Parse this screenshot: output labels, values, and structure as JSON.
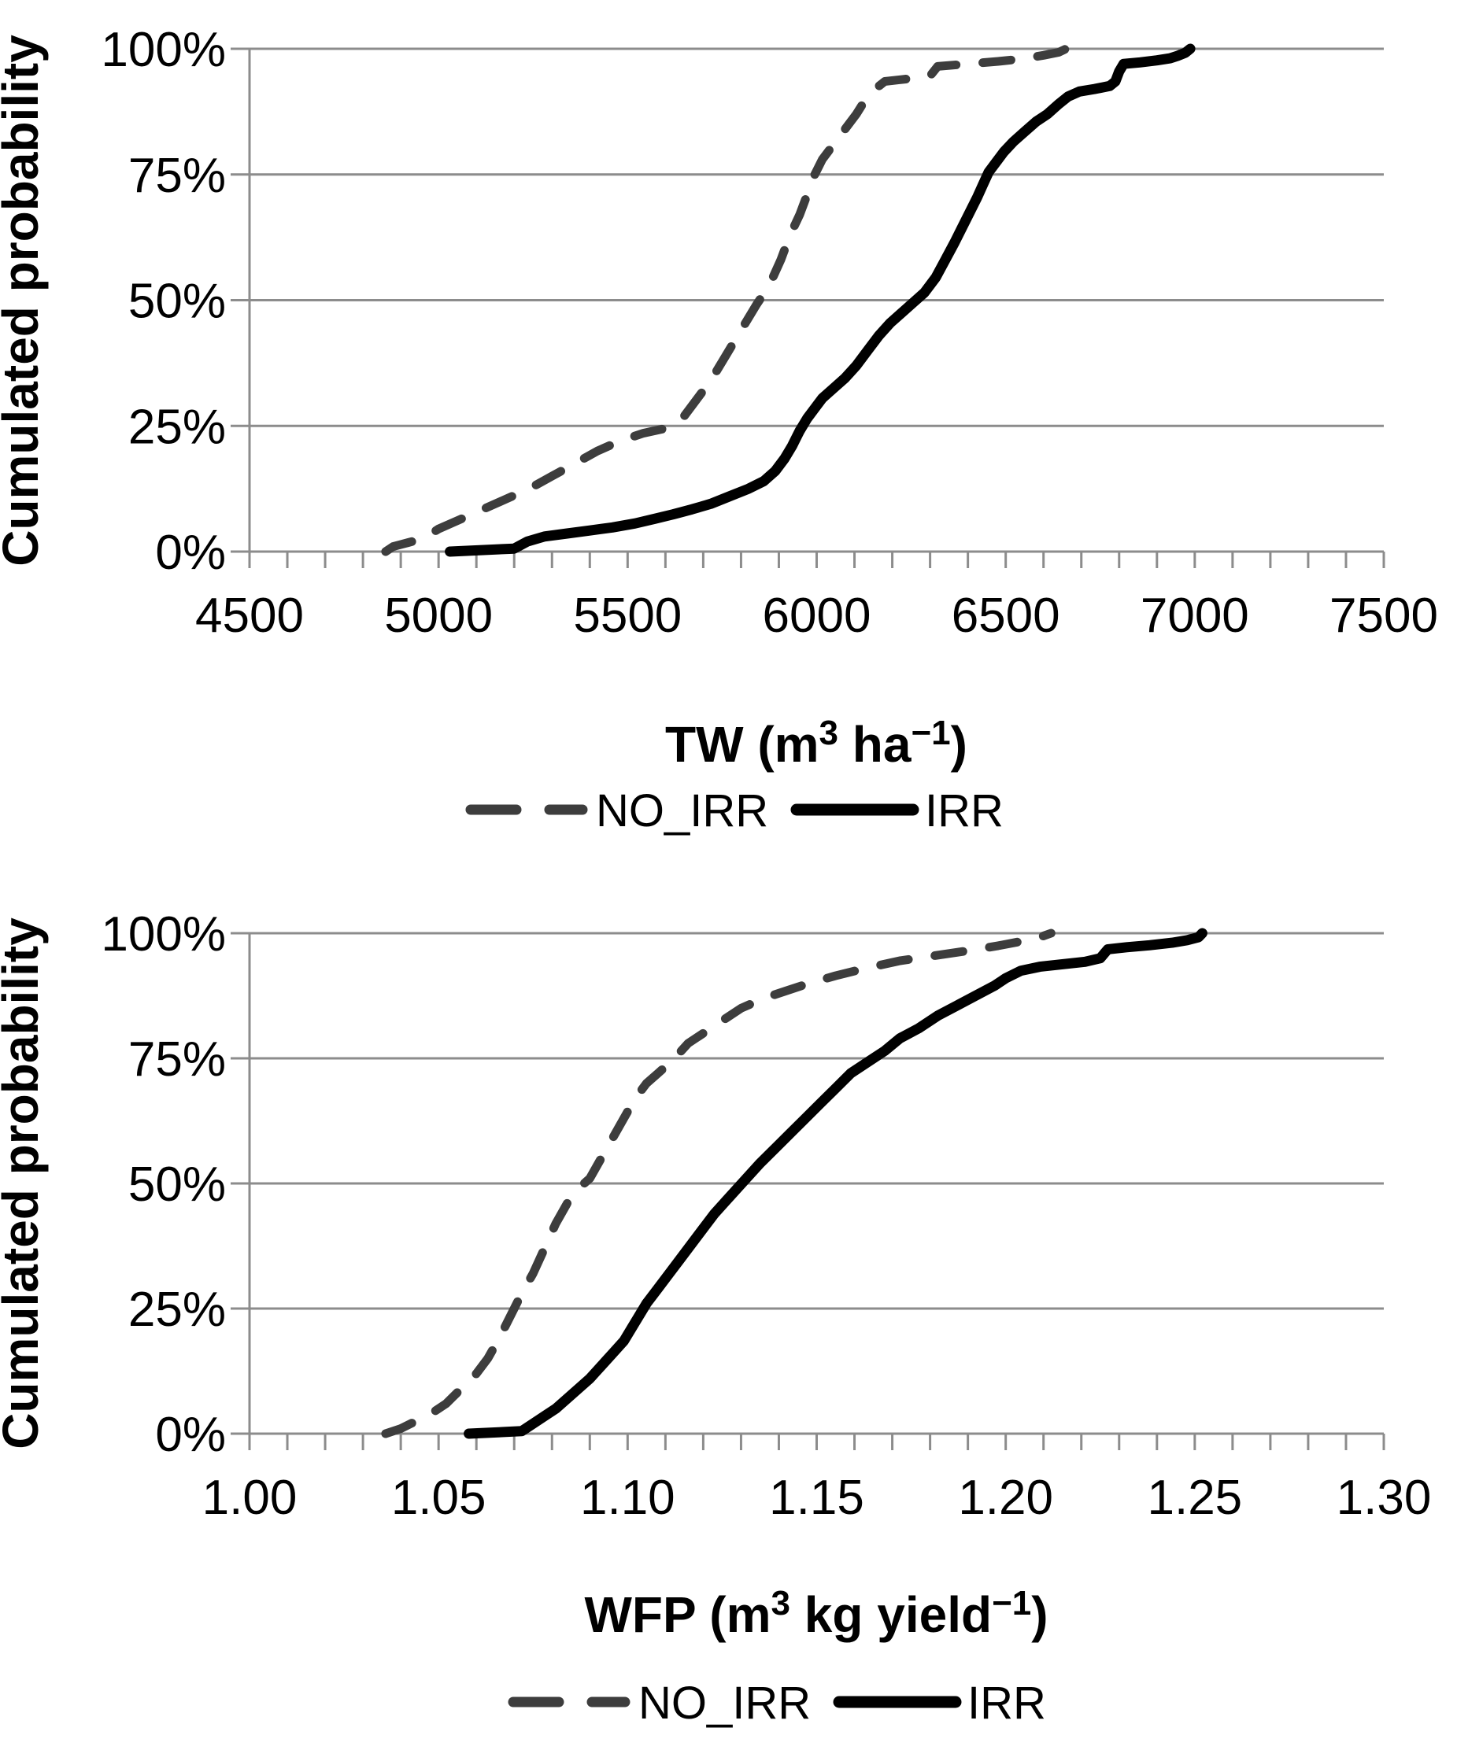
{
  "figure": {
    "background": "#ffffff",
    "y_axis_title": "Cumulated probability"
  },
  "colors": {
    "no_irr": "#3d3d3d",
    "irr": "#000000",
    "grid": "#8c8c8c",
    "axis": "#8c8c8c",
    "text": "#000000"
  },
  "legend": {
    "no_irr_label": "NO_IRR",
    "irr_label": "IRR"
  },
  "chart_data": [
    {
      "type": "line",
      "subtype": "empirical-cdf",
      "title": "",
      "xlabel": "TW (m³ ha⁻¹)",
      "xlabel_parts": [
        {
          "t": "TW (m"
        },
        {
          "t": "3",
          "sup": true
        },
        {
          "t": " ha"
        },
        {
          "t": "−1",
          "sup": true
        },
        {
          "t": ")"
        }
      ],
      "ylabel": "Cumulated probability",
      "grid": "horizontal",
      "legend_position": "bottom",
      "x_axis": {
        "min": 4500,
        "max": 7500,
        "minor_step": 100,
        "tick_values": [
          4500,
          5000,
          5500,
          6000,
          6500,
          7000,
          7500
        ],
        "tick_labels": [
          "4500",
          "5000",
          "5500",
          "6000",
          "6500",
          "7000",
          "7500"
        ]
      },
      "y_axis": {
        "min": 0,
        "max": 100,
        "tick_values": [
          100,
          75,
          50,
          25,
          0
        ],
        "tick_labels": [
          "100%",
          "75%",
          "50%",
          "25%",
          "0%"
        ]
      },
      "series": [
        {
          "name": "NO_IRR",
          "style": "dashed",
          "color": "#3d3d3d",
          "points": [
            [
              4860,
              0
            ],
            [
              4880,
              1
            ],
            [
              4920,
              1.8
            ],
            [
              4960,
              2.6
            ],
            [
              5000,
              4.5
            ],
            [
              5060,
              6.5
            ],
            [
              5120,
              8.5
            ],
            [
              5180,
              10.5
            ],
            [
              5240,
              12.5
            ],
            [
              5300,
              15
            ],
            [
              5360,
              17.5
            ],
            [
              5420,
              20
            ],
            [
              5480,
              22
            ],
            [
              5540,
              23.5
            ],
            [
              5600,
              24.5
            ],
            [
              5645,
              26.5
            ],
            [
              5680,
              30
            ],
            [
              5720,
              34
            ],
            [
              5760,
              39
            ],
            [
              5800,
              44
            ],
            [
              5840,
              49
            ],
            [
              5875,
              53
            ],
            [
              5905,
              58
            ],
            [
              5930,
              63
            ],
            [
              5955,
              67
            ],
            [
              5975,
              71
            ],
            [
              5995,
              75
            ],
            [
              6015,
              78
            ],
            [
              6045,
              81
            ],
            [
              6075,
              84
            ],
            [
              6105,
              87
            ],
            [
              6130,
              90
            ],
            [
              6155,
              92
            ],
            [
              6180,
              93.5
            ],
            [
              6240,
              94
            ],
            [
              6300,
              94.6
            ],
            [
              6320,
              96.5
            ],
            [
              6400,
              97
            ],
            [
              6480,
              97.5
            ],
            [
              6545,
              98
            ],
            [
              6600,
              98.7
            ],
            [
              6640,
              99.3
            ],
            [
              6660,
              100
            ]
          ]
        },
        {
          "name": "IRR",
          "style": "solid",
          "color": "#000000",
          "points": [
            [
              5030,
              0
            ],
            [
              5200,
              0.6
            ],
            [
              5235,
              2
            ],
            [
              5280,
              3
            ],
            [
              5340,
              3.6
            ],
            [
              5400,
              4.2
            ],
            [
              5460,
              4.8
            ],
            [
              5520,
              5.6
            ],
            [
              5570,
              6.5
            ],
            [
              5620,
              7.4
            ],
            [
              5670,
              8.4
            ],
            [
              5720,
              9.5
            ],
            [
              5770,
              11
            ],
            [
              5820,
              12.5
            ],
            [
              5860,
              14
            ],
            [
              5890,
              16
            ],
            [
              5915,
              18.5
            ],
            [
              5935,
              21
            ],
            [
              5955,
              24
            ],
            [
              5975,
              26.5
            ],
            [
              5995,
              28.5
            ],
            [
              6015,
              30.5
            ],
            [
              6045,
              32.5
            ],
            [
              6075,
              34.5
            ],
            [
              6105,
              37
            ],
            [
              6135,
              40
            ],
            [
              6165,
              43
            ],
            [
              6195,
              45.5
            ],
            [
              6225,
              47.5
            ],
            [
              6255,
              49.5
            ],
            [
              6285,
              51.5
            ],
            [
              6315,
              54.5
            ],
            [
              6340,
              58
            ],
            [
              6365,
              61.5
            ],
            [
              6385,
              64.5
            ],
            [
              6405,
              67.5
            ],
            [
              6425,
              70.5
            ],
            [
              6440,
              73
            ],
            [
              6455,
              75.5
            ],
            [
              6475,
              77.5
            ],
            [
              6495,
              79.5
            ],
            [
              6520,
              81.5
            ],
            [
              6550,
              83.5
            ],
            [
              6580,
              85.5
            ],
            [
              6610,
              87
            ],
            [
              6640,
              89
            ],
            [
              6665,
              90.5
            ],
            [
              6695,
              91.5
            ],
            [
              6735,
              92
            ],
            [
              6775,
              92.6
            ],
            [
              6790,
              93.5
            ],
            [
              6800,
              95.5
            ],
            [
              6812,
              97
            ],
            [
              6855,
              97.3
            ],
            [
              6900,
              97.7
            ],
            [
              6935,
              98.1
            ],
            [
              6955,
              98.6
            ],
            [
              6975,
              99.2
            ],
            [
              6988,
              100
            ]
          ]
        }
      ]
    },
    {
      "type": "line",
      "subtype": "empirical-cdf",
      "title": "",
      "xlabel": "WFP (m³ kg yield⁻¹)",
      "xlabel_parts": [
        {
          "t": "WFP (m"
        },
        {
          "t": "3",
          "sup": true
        },
        {
          "t": " kg yield"
        },
        {
          "t": "−1",
          "sup": true
        },
        {
          "t": ")"
        }
      ],
      "ylabel": "Cumulated probability",
      "grid": "horizontal",
      "legend_position": "bottom",
      "x_axis": {
        "min": 1.0,
        "max": 1.3,
        "minor_step": 0.01,
        "tick_values": [
          1.0,
          1.05,
          1.1,
          1.15,
          1.2,
          1.25,
          1.3
        ],
        "tick_labels": [
          "1.00",
          "1.05",
          "1.10",
          "1.15",
          "1.20",
          "1.25",
          "1.30"
        ]
      },
      "y_axis": {
        "min": 0,
        "max": 100,
        "tick_values": [
          100,
          75,
          50,
          25,
          0
        ],
        "tick_labels": [
          "100%",
          "75%",
          "50%",
          "25%",
          "0%"
        ]
      },
      "series": [
        {
          "name": "NO_IRR",
          "style": "dashed",
          "color": "#3d3d3d",
          "points": [
            [
              1.036,
              0
            ],
            [
              1.04,
              1
            ],
            [
              1.044,
              2.5
            ],
            [
              1.048,
              4
            ],
            [
              1.052,
              6
            ],
            [
              1.056,
              9
            ],
            [
              1.06,
              12
            ],
            [
              1.063,
              15
            ],
            [
              1.066,
              19
            ],
            [
              1.068,
              22
            ],
            [
              1.07,
              25
            ],
            [
              1.072,
              28
            ],
            [
              1.075,
              32
            ],
            [
              1.078,
              37
            ],
            [
              1.081,
              42
            ],
            [
              1.084,
              46
            ],
            [
              1.087,
              49
            ],
            [
              1.09,
              51
            ],
            [
              1.093,
              55
            ],
            [
              1.096,
              59
            ],
            [
              1.099,
              63
            ],
            [
              1.102,
              67
            ],
            [
              1.105,
              70
            ],
            [
              1.108,
              72
            ],
            [
              1.111,
              74
            ],
            [
              1.113,
              75.5
            ],
            [
              1.116,
              78
            ],
            [
              1.12,
              80
            ],
            [
              1.125,
              82.5
            ],
            [
              1.13,
              85
            ],
            [
              1.136,
              87
            ],
            [
              1.142,
              88.5
            ],
            [
              1.148,
              90
            ],
            [
              1.155,
              91.5
            ],
            [
              1.163,
              93
            ],
            [
              1.172,
              94.5
            ],
            [
              1.181,
              95.5
            ],
            [
              1.19,
              96.5
            ],
            [
              1.198,
              97.5
            ],
            [
              1.205,
              98.5
            ],
            [
              1.209,
              99.2
            ],
            [
              1.212,
              100
            ]
          ]
        },
        {
          "name": "IRR",
          "style": "solid",
          "color": "#000000",
          "points": [
            [
              1.058,
              0
            ],
            [
              1.072,
              0.5
            ],
            [
              1.075,
              2
            ],
            [
              1.078,
              3.5
            ],
            [
              1.081,
              5
            ],
            [
              1.084,
              7
            ],
            [
              1.087,
              9
            ],
            [
              1.09,
              11
            ],
            [
              1.093,
              13.5
            ],
            [
              1.096,
              16
            ],
            [
              1.099,
              18.5
            ],
            [
              1.101,
              21
            ],
            [
              1.103,
              23.5
            ],
            [
              1.105,
              26
            ],
            [
              1.108,
              29
            ],
            [
              1.111,
              32
            ],
            [
              1.114,
              35
            ],
            [
              1.117,
              38
            ],
            [
              1.12,
              41
            ],
            [
              1.123,
              44
            ],
            [
              1.126,
              46.5
            ],
            [
              1.129,
              49
            ],
            [
              1.132,
              51.5
            ],
            [
              1.135,
              54
            ],
            [
              1.139,
              57
            ],
            [
              1.143,
              60
            ],
            [
              1.147,
              63
            ],
            [
              1.151,
              66
            ],
            [
              1.155,
              69
            ],
            [
              1.159,
              72
            ],
            [
              1.164,
              74.5
            ],
            [
              1.168,
              76.5
            ],
            [
              1.172,
              79
            ],
            [
              1.177,
              81
            ],
            [
              1.182,
              83.5
            ],
            [
              1.187,
              85.5
            ],
            [
              1.192,
              87.5
            ],
            [
              1.197,
              89.5
            ],
            [
              1.2,
              91
            ],
            [
              1.204,
              92.5
            ],
            [
              1.209,
              93.3
            ],
            [
              1.215,
              93.8
            ],
            [
              1.221,
              94.3
            ],
            [
              1.225,
              95
            ],
            [
              1.227,
              96.8
            ],
            [
              1.232,
              97.2
            ],
            [
              1.238,
              97.6
            ],
            [
              1.244,
              98.1
            ],
            [
              1.248,
              98.6
            ],
            [
              1.251,
              99.2
            ],
            [
              1.252,
              100
            ]
          ]
        }
      ]
    }
  ]
}
